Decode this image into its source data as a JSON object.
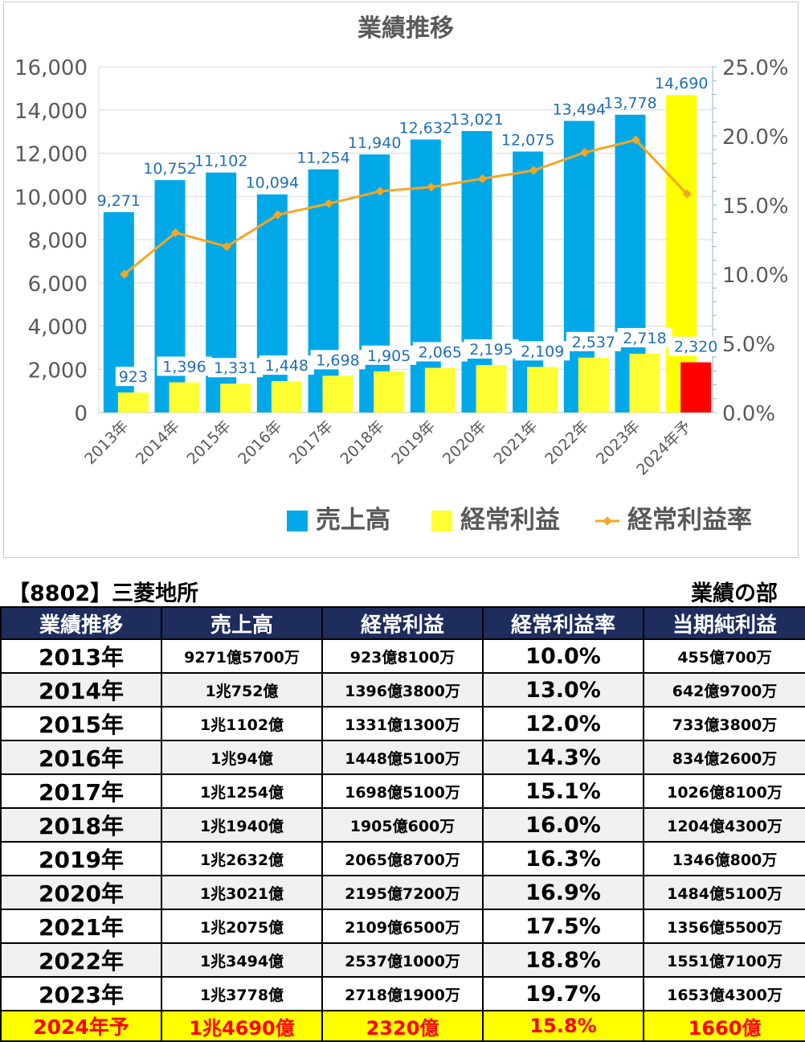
{
  "chart_data": {
    "type": "bar",
    "title": "業績推移",
    "categories": [
      "2013年",
      "2014年",
      "2015年",
      "2016年",
      "2017年",
      "2018年",
      "2019年",
      "2020年",
      "2021年",
      "2022年",
      "2023年",
      "2024年予"
    ],
    "series": [
      {
        "name": "売上高",
        "type": "bar",
        "axis": "left",
        "values": [
          9271,
          10752,
          11102,
          10094,
          11254,
          11940,
          12632,
          13021,
          12075,
          13494,
          13778,
          14690
        ],
        "labels": [
          "9,271",
          "10,752",
          "11,102",
          "10,094",
          "11,254",
          "11,940",
          "12,632",
          "13,021",
          "12,075",
          "13,494",
          "13,778",
          "14,690"
        ]
      },
      {
        "name": "経常利益",
        "type": "bar",
        "axis": "left",
        "values": [
          923,
          1396,
          1331,
          1448,
          1698,
          1905,
          2065,
          2195,
          2109,
          2537,
          2718,
          2320
        ],
        "labels": [
          "923",
          "1,396",
          "1,331",
          "1,448",
          "1,698",
          "1,905",
          "2,065",
          "2,195",
          "2,109",
          "2,537",
          "2,718",
          "2,320"
        ]
      },
      {
        "name": "経常利益率",
        "type": "line",
        "axis": "right",
        "values": [
          10.0,
          13.0,
          12.0,
          14.3,
          15.1,
          16.0,
          16.3,
          16.9,
          17.5,
          18.8,
          19.7,
          15.8
        ]
      }
    ],
    "ylim": [
      0,
      16000
    ],
    "y2lim": [
      0,
      25
    ],
    "yticks": [
      "0",
      "2,000",
      "4,000",
      "6,000",
      "8,000",
      "10,000",
      "12,000",
      "14,000",
      "16,000"
    ],
    "y2ticks": [
      "0.0%",
      "5.0%",
      "10.0%",
      "15.0%",
      "20.0%",
      "25.0%"
    ],
    "legend": "bottom",
    "grid": true,
    "colors": {
      "sales": "#00a8e8",
      "profit": "#ffff33",
      "rate": "#f5a623",
      "forecast_sales": "#ffff00",
      "forecast_profit": "#ff0000",
      "label_text": "#1f6fb5",
      "axis_text": "#595959"
    }
  },
  "header": {
    "company": "【8802】三菱地所",
    "section": "業績の部"
  },
  "table": {
    "columns": [
      "業績推移",
      "売上高",
      "経常利益",
      "経常利益率",
      "当期純利益"
    ],
    "rows": [
      [
        "2013年",
        "9271億5700万",
        "923億8100万",
        "10.0%",
        "455億700万"
      ],
      [
        "2014年",
        "1兆752億",
        "1396億3800万",
        "13.0%",
        "642億9700万"
      ],
      [
        "2015年",
        "1兆1102億",
        "1331億1300万",
        "12.0%",
        "733億3800万"
      ],
      [
        "2016年",
        "1兆94億",
        "1448億5100万",
        "14.3%",
        "834億2600万"
      ],
      [
        "2017年",
        "1兆1254億",
        "1698億5100万",
        "15.1%",
        "1026億8100万"
      ],
      [
        "2018年",
        "1兆1940億",
        "1905億600万",
        "16.0%",
        "1204億4300万"
      ],
      [
        "2019年",
        "1兆2632億",
        "2065億8700万",
        "16.3%",
        "1346億800万"
      ],
      [
        "2020年",
        "1兆3021億",
        "2195億7200万",
        "16.9%",
        "1484億5100万"
      ],
      [
        "2021年",
        "1兆2075億",
        "2109億6500万",
        "17.5%",
        "1356億5500万"
      ],
      [
        "2022年",
        "1兆3494億",
        "2537億1000万",
        "18.8%",
        "1551億7100万"
      ],
      [
        "2023年",
        "1兆3778億",
        "2718億1900万",
        "19.7%",
        "1653億4300万"
      ]
    ],
    "forecast_row": [
      "2024年予",
      "1兆4690億",
      "2320億",
      "15.8%",
      "1660億"
    ],
    "header_bg": "#1e2d5e",
    "forecast_bg": "#ffff00",
    "forecast_text": "#ff0000"
  }
}
